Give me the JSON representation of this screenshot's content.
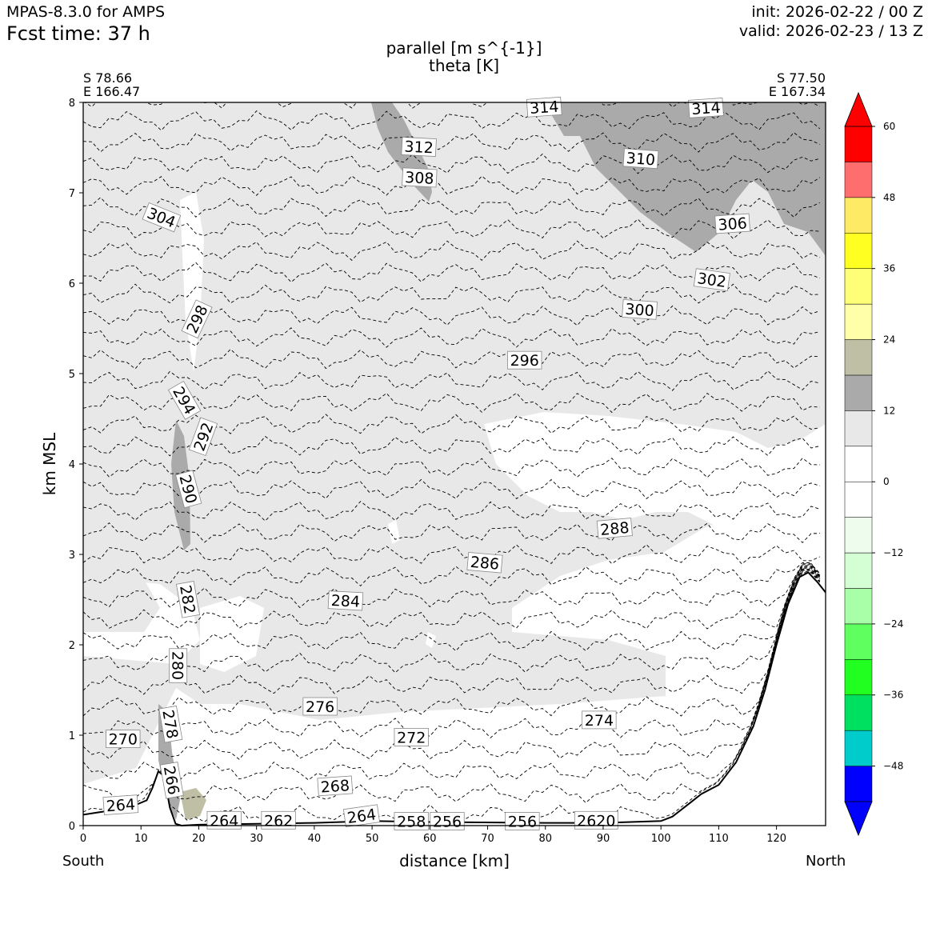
{
  "header": {
    "model": "MPAS-8.3.0 for AMPS",
    "fcst": "Fcst time:   37 h",
    "init": "init: 2026-02-22 / 00 Z",
    "valid": "valid: 2026-02-23 / 13 Z"
  },
  "chart_data": {
    "type": "contour cross-section",
    "title": "parallel [m s^{-1}]",
    "subtitle": "theta [K]",
    "xlabel": "distance [km]",
    "ylabel": "km MSL",
    "xlim": [
      0,
      128.5
    ],
    "ylim": [
      0,
      8
    ],
    "x_ticks": [
      0,
      10,
      20,
      30,
      40,
      50,
      60,
      70,
      80,
      90,
      100,
      110,
      120
    ],
    "y_ticks": [
      0,
      1,
      2,
      3,
      4,
      5,
      6,
      7,
      8
    ],
    "start_point": {
      "lat": "S 78.66",
      "lon": "E 166.47"
    },
    "end_point": {
      "lat": "S 77.50",
      "lon": "E 167.34"
    },
    "start_label": "South",
    "end_label": "North",
    "colorbar": {
      "min": -54,
      "max": 60,
      "step": 6,
      "ticks": [
        60,
        48,
        36,
        24,
        12,
        0,
        -12,
        -24,
        -36,
        -48
      ],
      "tick_labels": [
        "60",
        "48",
        "36",
        "24",
        "12",
        "0",
        "−12",
        "−24",
        "−36",
        "−48"
      ],
      "over_color": "#ff0000",
      "under_color": "#0000ff",
      "colors": [
        "#0000ff",
        "#00cccc",
        "#00e060",
        "#20ff20",
        "#60ff60",
        "#a8ffa8",
        "#d4ffd4",
        "#eefcee",
        "#ffffff",
        "#ffffff",
        "#e8e8e8",
        "#aaaaaa",
        "#bfbfa6",
        "#ffffaa",
        "#ffff77",
        "#ffff22",
        "#ffea66",
        "#ff6e6e",
        "#ff0000"
      ]
    },
    "terrain": [
      [
        0,
        0.12
      ],
      [
        5,
        0.17
      ],
      [
        8,
        0.2
      ],
      [
        11,
        0.28
      ],
      [
        12,
        0.42
      ],
      [
        13,
        0.6
      ],
      [
        14,
        0.55
      ],
      [
        15,
        0.2
      ],
      [
        16,
        0.02
      ],
      [
        17,
        0.0
      ],
      [
        20,
        0.01
      ],
      [
        30,
        0.02
      ],
      [
        40,
        0.03
      ],
      [
        50,
        0.05
      ],
      [
        60,
        0.04
      ],
      [
        80,
        0.03
      ],
      [
        90,
        0.03
      ],
      [
        100,
        0.05
      ],
      [
        102,
        0.1
      ],
      [
        105,
        0.25
      ],
      [
        107,
        0.35
      ],
      [
        110,
        0.45
      ],
      [
        113,
        0.7
      ],
      [
        116,
        1.1
      ],
      [
        118,
        1.5
      ],
      [
        120,
        2.0
      ],
      [
        122,
        2.45
      ],
      [
        124,
        2.75
      ],
      [
        125.5,
        2.8
      ],
      [
        127,
        2.7
      ],
      [
        128.5,
        2.58
      ]
    ],
    "theta_labels": [
      {
        "value": 314,
        "x": 79.8,
        "y": 7.94,
        "angle": -4
      },
      {
        "value": 314,
        "x": 107.8,
        "y": 7.93,
        "angle": -4
      },
      {
        "value": 312,
        "x": 58.1,
        "y": 7.5,
        "angle": 3
      },
      {
        "value": 308,
        "x": 58.2,
        "y": 7.16,
        "angle": 3
      },
      {
        "value": 310,
        "x": 96.5,
        "y": 7.37,
        "angle": 4
      },
      {
        "value": 306,
        "x": 112.4,
        "y": 6.65,
        "angle": -4
      },
      {
        "value": 304,
        "x": 13.5,
        "y": 6.72,
        "angle": 22
      },
      {
        "value": 302,
        "x": 108.8,
        "y": 6.03,
        "angle": 8
      },
      {
        "value": 300,
        "x": 96.3,
        "y": 5.7,
        "angle": 4
      },
      {
        "value": 298,
        "x": 19.8,
        "y": 5.6,
        "angle": -65
      },
      {
        "value": 296,
        "x": 76.4,
        "y": 5.14,
        "angle": 0
      },
      {
        "value": 294,
        "x": 17.4,
        "y": 4.7,
        "angle": 60
      },
      {
        "value": 292,
        "x": 20.9,
        "y": 4.3,
        "angle": -70
      },
      {
        "value": 290,
        "x": 18.1,
        "y": 3.72,
        "angle": 75
      },
      {
        "value": 288,
        "x": 92.0,
        "y": 3.28,
        "angle": -5
      },
      {
        "value": 286,
        "x": 69.5,
        "y": 2.9,
        "angle": 5
      },
      {
        "value": 284,
        "x": 45.4,
        "y": 2.48,
        "angle": 3
      },
      {
        "value": 282,
        "x": 18.0,
        "y": 2.5,
        "angle": 80
      },
      {
        "value": 280,
        "x": 16.3,
        "y": 1.77,
        "angle": 90
      },
      {
        "value": 278,
        "x": 15.0,
        "y": 1.12,
        "angle": 80
      },
      {
        "value": 276,
        "x": 41.0,
        "y": 1.31,
        "angle": 0
      },
      {
        "value": 274,
        "x": 89.3,
        "y": 1.16,
        "angle": 0
      },
      {
        "value": 272,
        "x": 56.8,
        "y": 0.97,
        "angle": 0
      },
      {
        "value": 270,
        "x": 6.9,
        "y": 0.95,
        "angle": 0
      },
      {
        "value": 268,
        "x": 43.6,
        "y": 0.43,
        "angle": -4
      },
      {
        "value": 266,
        "x": 15.2,
        "y": 0.5,
        "angle": 80
      },
      {
        "value": 264,
        "x": 6.5,
        "y": 0.22,
        "angle": -4
      },
      {
        "value": 264,
        "x": 24.4,
        "y": 0.05,
        "angle": 0
      },
      {
        "value": 262,
        "x": 33.8,
        "y": 0.05,
        "angle": 0
      },
      {
        "value": 264,
        "x": 48.2,
        "y": 0.1,
        "angle": -8
      },
      {
        "value": 258,
        "x": 56.8,
        "y": 0.04,
        "angle": 0
      },
      {
        "value": 256,
        "x": 63.0,
        "y": 0.04,
        "angle": 0
      },
      {
        "value": 256,
        "x": 76.0,
        "y": 0.04,
        "angle": 0
      },
      {
        "value": 2620,
        "x": 88.8,
        "y": 0.05,
        "angle": 0
      }
    ]
  }
}
